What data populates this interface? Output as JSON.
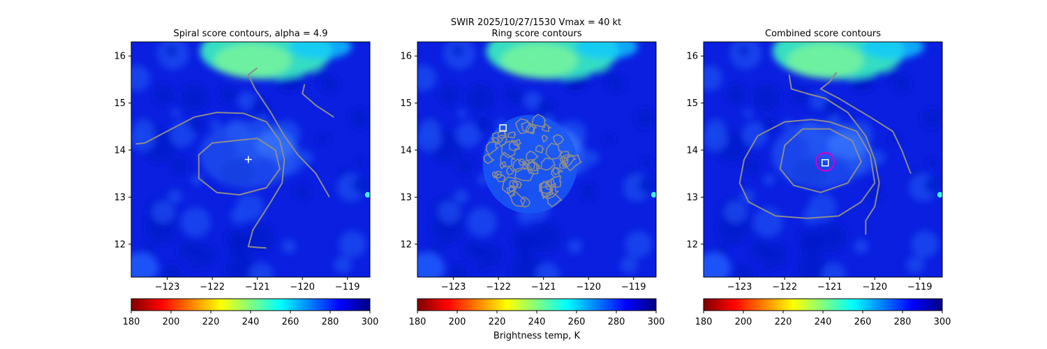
{
  "suptitle": "SWIR  2025/10/27/1530    Vmax = 40 kt",
  "colorbar": {
    "label": "Brightness temp, K",
    "ticks": [
      180,
      200,
      220,
      240,
      260,
      280,
      300
    ],
    "range": [
      180,
      300
    ],
    "colormap": "jet_reversed",
    "colors": [
      "#800000",
      "#ff0000",
      "#ff8000",
      "#ffff00",
      "#80ff80",
      "#00ffff",
      "#0080ff",
      "#0000ff",
      "#000080"
    ]
  },
  "chart_data": [
    {
      "type": "heatmap",
      "title": "Spiral score contours, alpha =  4.9",
      "xlim": [
        -123.8,
        -118.5
      ],
      "ylim": [
        11.3,
        16.3
      ],
      "xticks": [
        -123,
        -122,
        -121,
        -120,
        -119
      ],
      "yticks": [
        12,
        13,
        14,
        15,
        16
      ],
      "xtick_labels": [
        "−123",
        "−122",
        "−121",
        "−120",
        "−119"
      ],
      "ytick_labels": [
        "12",
        "13",
        "14",
        "15",
        "16"
      ],
      "center_marker": {
        "symbol": "+",
        "lon": -121.2,
        "lat": 13.8,
        "color": "#ffffff"
      },
      "contours": [
        [
          [
            -123.7,
            14.13
          ],
          [
            -123.5,
            14.15
          ],
          [
            -123.2,
            14.3
          ],
          [
            -122.8,
            14.5
          ],
          [
            -122.4,
            14.7
          ],
          [
            -121.9,
            14.8
          ],
          [
            -121.3,
            14.78
          ],
          [
            -120.8,
            14.6
          ],
          [
            -120.5,
            14.2
          ],
          [
            -120.4,
            13.8
          ],
          [
            -120.45,
            13.3
          ],
          [
            -120.7,
            12.9
          ],
          [
            -120.9,
            12.6
          ],
          [
            -121.1,
            12.3
          ],
          [
            -121.2,
            11.95
          ],
          [
            -121.0,
            11.93
          ],
          [
            -120.8,
            11.92
          ]
        ],
        [
          [
            -121.5,
            14.2
          ],
          [
            -121.0,
            14.25
          ],
          [
            -120.6,
            14.0
          ],
          [
            -120.5,
            13.6
          ],
          [
            -120.8,
            13.2
          ],
          [
            -121.4,
            13.05
          ],
          [
            -121.9,
            13.1
          ],
          [
            -122.3,
            13.4
          ],
          [
            -122.3,
            13.9
          ],
          [
            -122.0,
            14.15
          ],
          [
            -121.5,
            14.2
          ]
        ],
        [
          [
            -121.0,
            15.75
          ],
          [
            -121.2,
            15.6
          ],
          [
            -121.05,
            15.3
          ],
          [
            -120.7,
            14.8
          ],
          [
            -120.4,
            14.3
          ],
          [
            -120.1,
            13.9
          ],
          [
            -119.7,
            13.5
          ],
          [
            -119.4,
            13.0
          ]
        ],
        [
          [
            -119.95,
            15.4
          ],
          [
            -120.0,
            15.2
          ],
          [
            -119.7,
            14.95
          ],
          [
            -119.3,
            14.7
          ]
        ]
      ]
    },
    {
      "type": "heatmap",
      "title": "Ring score contours",
      "xlim": [
        -123.8,
        -118.5
      ],
      "ylim": [
        11.3,
        16.3
      ],
      "xticks": [
        -123,
        -122,
        -121,
        -120,
        -119
      ],
      "yticks": [
        12,
        13,
        14,
        15,
        16
      ],
      "xtick_labels": [
        "−123",
        "−122",
        "−121",
        "−120",
        "−119"
      ],
      "ytick_labels": [
        "12",
        "13",
        "14",
        "15",
        "16"
      ],
      "center_marker": {
        "symbol": "square",
        "lon": -121.9,
        "lat": 14.47,
        "color": "#ffffff"
      },
      "contour_region": {
        "lon": -121.3,
        "lat": 13.7,
        "r_lon": 1.05,
        "r_lat": 1.05
      },
      "contours": []
    },
    {
      "type": "heatmap",
      "title": "Combined score contours",
      "xlim": [
        -123.8,
        -118.5
      ],
      "ylim": [
        11.3,
        16.3
      ],
      "xticks": [
        -123,
        -122,
        -121,
        -120,
        -119
      ],
      "yticks": [
        12,
        13,
        14,
        15,
        16
      ],
      "xtick_labels": [
        "−123",
        "−122",
        "−121",
        "−120",
        "−119"
      ],
      "ytick_labels": [
        "12",
        "13",
        "14",
        "15",
        "16"
      ],
      "center_marker": {
        "symbol": "square",
        "lon": -121.1,
        "lat": 13.73,
        "color": "#ffffff"
      },
      "circle_marker": {
        "lon": -121.1,
        "lat": 13.75,
        "r_lon": 0.2,
        "color": "#cc00cc"
      },
      "contours": [
        [
          [
            -121.6,
            14.45
          ],
          [
            -121.0,
            14.45
          ],
          [
            -120.5,
            14.2
          ],
          [
            -120.3,
            13.75
          ],
          [
            -120.6,
            13.3
          ],
          [
            -121.2,
            13.1
          ],
          [
            -121.8,
            13.25
          ],
          [
            -122.1,
            13.6
          ],
          [
            -122.0,
            14.1
          ],
          [
            -121.6,
            14.45
          ]
        ],
        [
          [
            -121.0,
            14.6
          ],
          [
            -120.4,
            14.4
          ],
          [
            -120.1,
            13.9
          ],
          [
            -120.0,
            13.3
          ],
          [
            -120.3,
            12.9
          ],
          [
            -120.8,
            12.6
          ],
          [
            -121.5,
            12.55
          ],
          [
            -122.2,
            12.6
          ],
          [
            -122.8,
            12.9
          ],
          [
            -123.0,
            13.3
          ],
          [
            -122.9,
            13.8
          ],
          [
            -122.6,
            14.3
          ],
          [
            -122.0,
            14.6
          ],
          [
            -121.4,
            14.65
          ],
          [
            -121.0,
            14.6
          ]
        ],
        [
          [
            -121.9,
            15.6
          ],
          [
            -121.85,
            15.3
          ],
          [
            -121.5,
            15.2
          ],
          [
            -121.1,
            15.1
          ],
          [
            -120.6,
            14.8
          ],
          [
            -120.2,
            14.3
          ],
          [
            -120.0,
            13.8
          ],
          [
            -119.9,
            13.3
          ],
          [
            -120.0,
            12.8
          ],
          [
            -120.2,
            12.5
          ],
          [
            -120.2,
            12.2
          ]
        ],
        [
          [
            -120.85,
            15.65
          ],
          [
            -121.0,
            15.45
          ],
          [
            -121.2,
            15.3
          ],
          [
            -120.8,
            15.1
          ],
          [
            -120.1,
            14.7
          ],
          [
            -119.6,
            14.4
          ],
          [
            -119.4,
            14.0
          ],
          [
            -119.2,
            13.5
          ]
        ]
      ]
    }
  ]
}
